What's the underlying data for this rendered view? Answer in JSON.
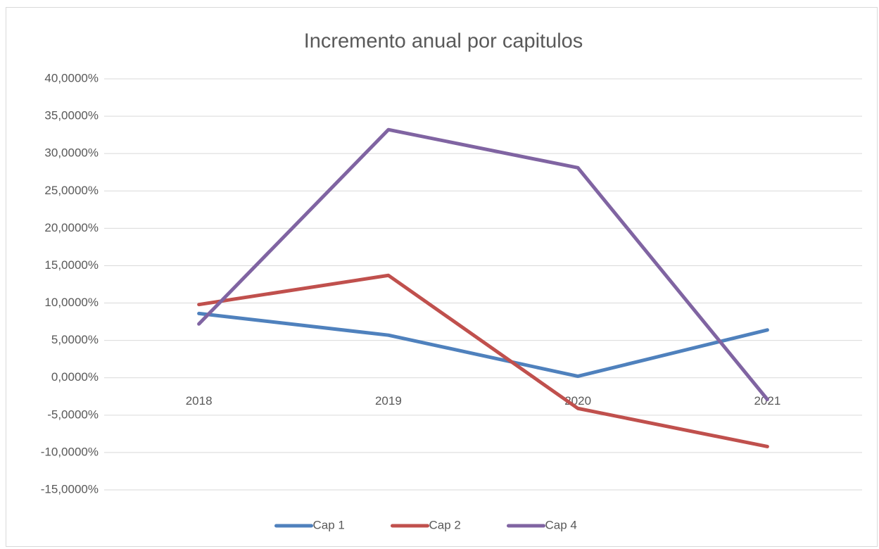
{
  "chart_data": {
    "type": "line",
    "title": "Incremento anual por capitulos",
    "categories": [
      "2018",
      "2019",
      "2020",
      "2021"
    ],
    "series": [
      {
        "name": "Cap 1",
        "color": "#4f81bd",
        "values": [
          8.6,
          5.7,
          0.2,
          6.4
        ]
      },
      {
        "name": "Cap 2",
        "color": "#c0504d",
        "values": [
          9.8,
          13.7,
          -4.1,
          -9.2
        ]
      },
      {
        "name": "Cap 4",
        "color": "#8064a2",
        "values": [
          7.2,
          33.2,
          28.1,
          -2.9
        ]
      }
    ],
    "ylim": [
      -15,
      40
    ],
    "yticks": [
      {
        "value": -15,
        "label": "-15,0000%"
      },
      {
        "value": -10,
        "label": "-10,0000%"
      },
      {
        "value": -5,
        "label": "-5,0000%"
      },
      {
        "value": 0,
        "label": "0,0000%"
      },
      {
        "value": 5,
        "label": "5,0000%"
      },
      {
        "value": 10,
        "label": "10,0000%"
      },
      {
        "value": 15,
        "label": "15,0000%"
      },
      {
        "value": 20,
        "label": "20,0000%"
      },
      {
        "value": 25,
        "label": "25,0000%"
      },
      {
        "value": 30,
        "label": "30,0000%"
      },
      {
        "value": 35,
        "label": "35,0000%"
      },
      {
        "value": 40,
        "label": "40,0000%"
      }
    ],
    "grid": true,
    "legend": "bottom"
  }
}
